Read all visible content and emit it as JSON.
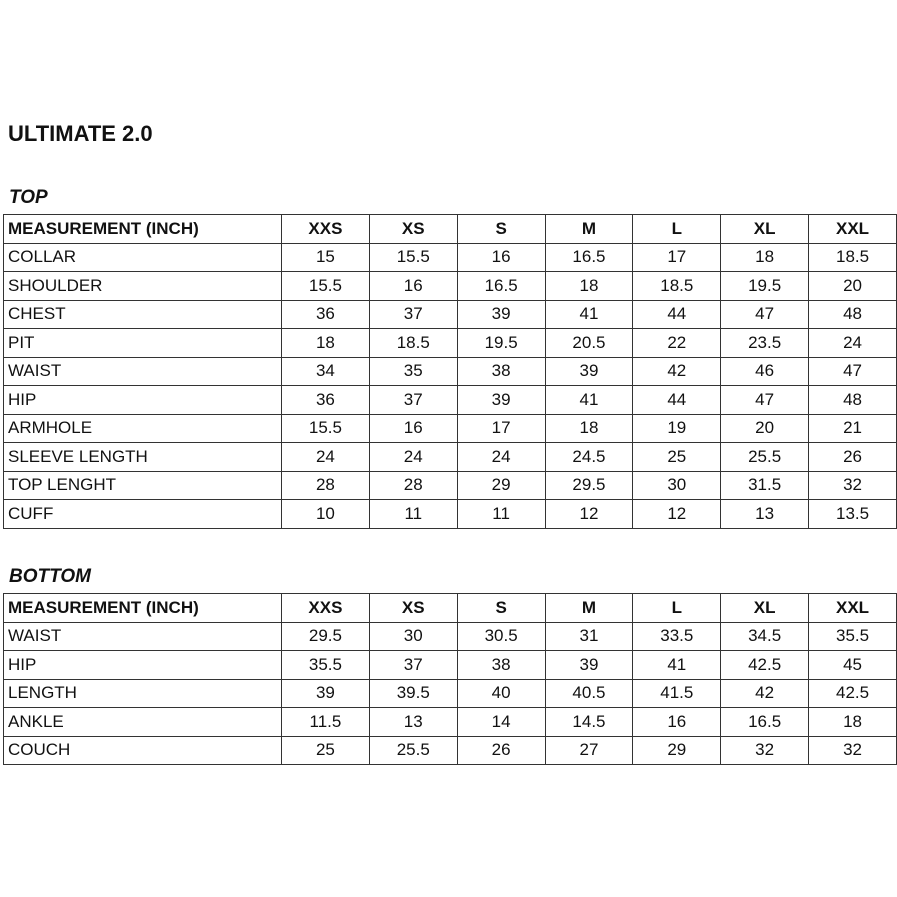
{
  "title": "ULTIMATE 2.0",
  "sizes_header": [
    "MEASUREMENT (INCH)",
    "XXS",
    "XS",
    "S",
    "M",
    "L",
    "XL",
    "XXL"
  ],
  "top": {
    "heading": "TOP",
    "rows": [
      [
        "COLLAR",
        "15",
        "15.5",
        "16",
        "16.5",
        "17",
        "18",
        "18.5"
      ],
      [
        "SHOULDER",
        "15.5",
        "16",
        "16.5",
        "18",
        "18.5",
        "19.5",
        "20"
      ],
      [
        "CHEST",
        "36",
        "37",
        "39",
        "41",
        "44",
        "47",
        "48"
      ],
      [
        "PIT",
        "18",
        "18.5",
        "19.5",
        "20.5",
        "22",
        "23.5",
        "24"
      ],
      [
        "WAIST",
        "34",
        "35",
        "38",
        "39",
        "42",
        "46",
        "47"
      ],
      [
        "HIP",
        "36",
        "37",
        "39",
        "41",
        "44",
        "47",
        "48"
      ],
      [
        "ARMHOLE",
        "15.5",
        "16",
        "17",
        "18",
        "19",
        "20",
        "21"
      ],
      [
        "SLEEVE LENGTH",
        "24",
        "24",
        "24",
        "24.5",
        "25",
        "25.5",
        "26"
      ],
      [
        "TOP LENGHT",
        "28",
        "28",
        "29",
        "29.5",
        "30",
        "31.5",
        "32"
      ],
      [
        "CUFF",
        "10",
        "11",
        "11",
        "12",
        "12",
        "13",
        "13.5"
      ]
    ]
  },
  "bottom": {
    "heading": "BOTTOM",
    "rows": [
      [
        "WAIST",
        "29.5",
        "30",
        "30.5",
        "31",
        "33.5",
        "34.5",
        "35.5"
      ],
      [
        "HIP",
        "35.5",
        "37",
        "38",
        "39",
        "41",
        "42.5",
        "45"
      ],
      [
        "LENGTH",
        "39",
        "39.5",
        "40",
        "40.5",
        "41.5",
        "42",
        "42.5"
      ],
      [
        "ANKLE",
        "11.5",
        "13",
        "14",
        "14.5",
        "16",
        "16.5",
        "18"
      ],
      [
        "COUCH",
        "25",
        "25.5",
        "26",
        "27",
        "29",
        "32",
        "32"
      ]
    ]
  }
}
